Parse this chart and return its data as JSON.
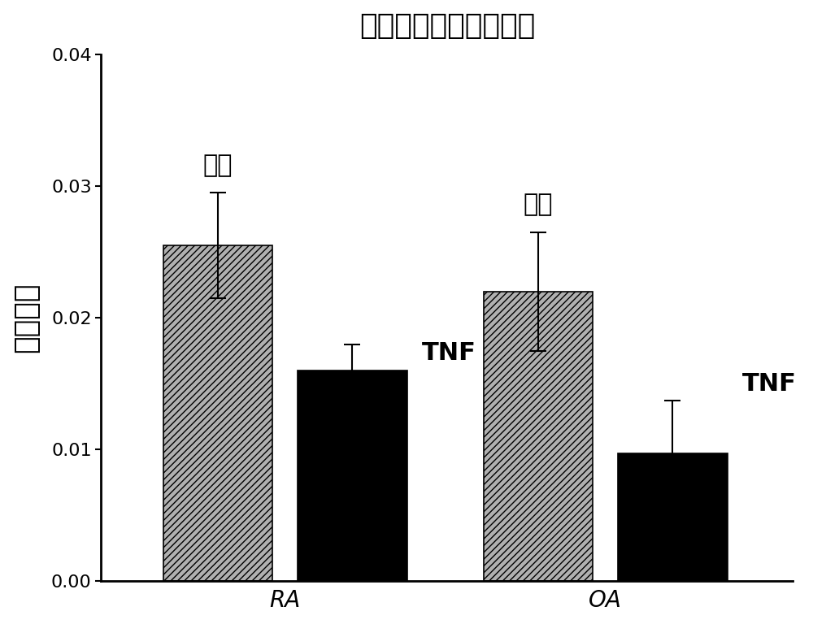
{
  "title": "ＰＴＰＲＳ表达合并物",
  "ylabel": "相对表达",
  "groups": [
    "RA",
    "OA"
  ],
  "values": {
    "RA": {
      "control": 0.0255,
      "TNF": 0.016
    },
    "OA": {
      "control": 0.022,
      "TNF": 0.0097
    }
  },
  "errors": {
    "RA": {
      "control": 0.004,
      "TNF": 0.002
    },
    "OA": {
      "control": 0.0045,
      "TNF": 0.004
    }
  },
  "ylim": [
    0,
    0.04
  ],
  "yticks": [
    0.0,
    0.01,
    0.02,
    0.03,
    0.04
  ],
  "control_color": "#b0b0b0",
  "tnf_color": "#000000",
  "hatch": "////",
  "bg_color": "#ffffff",
  "title_fontsize": 26,
  "ylabel_fontsize": 26,
  "tick_fontsize": 16,
  "annotation_fontsize": 22,
  "tnf_fontsize": 22,
  "bar_width": 0.3
}
